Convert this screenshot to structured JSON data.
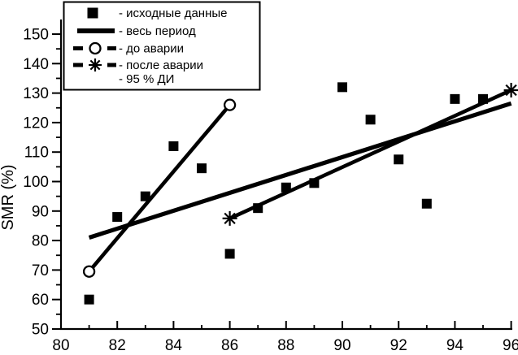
{
  "figure": {
    "background_color": "#ffffff",
    "ink_color": "#000000"
  },
  "chart_data": {
    "type": "scatter",
    "title": "",
    "xlabel": "",
    "ylabel": "SMR (%)",
    "xlim": [
      80,
      96
    ],
    "ylim": [
      50,
      155
    ],
    "grid": false,
    "legend_position": "top-left",
    "x_major_ticks": [
      80,
      82,
      84,
      86,
      88,
      90,
      92,
      94,
      96
    ],
    "x_minor_ticks": [
      81,
      83,
      85,
      87,
      89,
      91,
      93,
      95
    ],
    "y_major_ticks": [
      50,
      60,
      70,
      80,
      90,
      100,
      110,
      120,
      130,
      140,
      150
    ],
    "y_minor_ticks": [
      55,
      65,
      75,
      85,
      95,
      105,
      115,
      125,
      135,
      145
    ],
    "series": [
      {
        "name": "исходные данные",
        "kind": "scatter",
        "marker": "filled-square",
        "points": [
          [
            81,
            60
          ],
          [
            82,
            88
          ],
          [
            83,
            95
          ],
          [
            84,
            112
          ],
          [
            85,
            104.5
          ],
          [
            86,
            75.5
          ],
          [
            87,
            91
          ],
          [
            88,
            98
          ],
          [
            89,
            99.5
          ],
          [
            90,
            132
          ],
          [
            91,
            121
          ],
          [
            92,
            107.5
          ],
          [
            93,
            92.5
          ],
          [
            94,
            128
          ],
          [
            95,
            128
          ]
        ]
      },
      {
        "name": "весь период",
        "kind": "line",
        "marker": "none",
        "points": [
          [
            81,
            81
          ],
          [
            96,
            126.5
          ]
        ]
      },
      {
        "name": "до аварии",
        "kind": "line",
        "marker": "open-circle",
        "points": [
          [
            81,
            69.5
          ],
          [
            86,
            126
          ]
        ]
      },
      {
        "name": "после аварии",
        "kind": "line",
        "marker": "asterisk",
        "points": [
          [
            86,
            87.5
          ],
          [
            96,
            131
          ]
        ]
      }
    ],
    "legend": [
      {
        "marker": "filled-square",
        "label": "- исходные данные"
      },
      {
        "marker": "thick-line",
        "label": "- весь период"
      },
      {
        "marker": "dash-circle",
        "label": "- до аварии"
      },
      {
        "marker": "dash-asterisk",
        "label": "- после аварии"
      },
      {
        "marker": "none",
        "label": "- 95 % ДИ"
      }
    ]
  }
}
